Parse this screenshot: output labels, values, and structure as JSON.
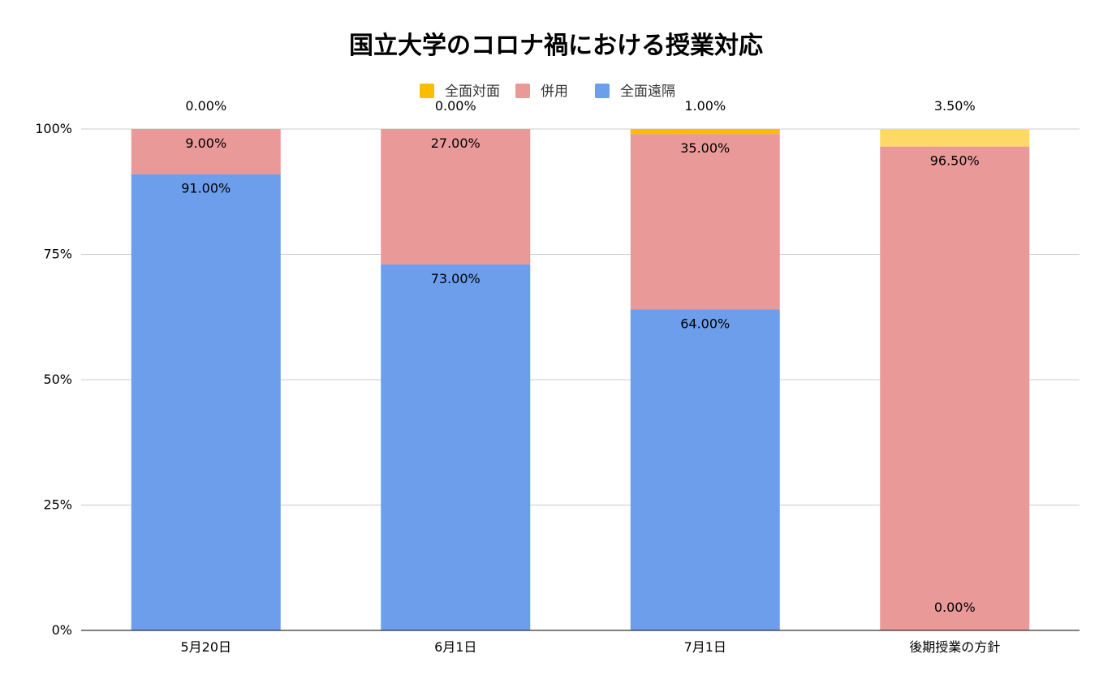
{
  "chart_data": {
    "type": "bar",
    "stacked": true,
    "title": "国立大学のコロナ禍における授業対応",
    "categories": [
      "5月20日",
      "6月1日",
      "7月1日",
      "後期授業の方針"
    ],
    "series": [
      {
        "name": "全面遠隔",
        "color": "#6d9eeb",
        "values": [
          91.0,
          73.0,
          64.0,
          0.0
        ],
        "labels": [
          "91.00%",
          "73.00%",
          "64.00%",
          "0.00%"
        ]
      },
      {
        "name": "併用",
        "color": "#ea9999",
        "values": [
          9.0,
          27.0,
          35.0,
          96.5
        ],
        "labels": [
          "9.00%",
          "27.00%",
          "35.00%",
          "96.50%"
        ]
      },
      {
        "name": "全面対面",
        "color": "#fbbc04",
        "values": [
          0.0,
          0.0,
          1.0,
          3.5
        ],
        "labels": [
          "0.00%",
          "0.00%",
          "1.00%",
          "3.50%"
        ]
      }
    ],
    "ylim": [
      0,
      100
    ],
    "yticks": [
      0,
      25,
      50,
      75,
      100
    ],
    "ytick_labels": [
      "0%",
      "25%",
      "50%",
      "75%",
      "100%"
    ],
    "grid": true,
    "legend_position": "top-center",
    "legend_order": [
      "全面対面",
      "併用",
      "全面遠隔"
    ]
  }
}
